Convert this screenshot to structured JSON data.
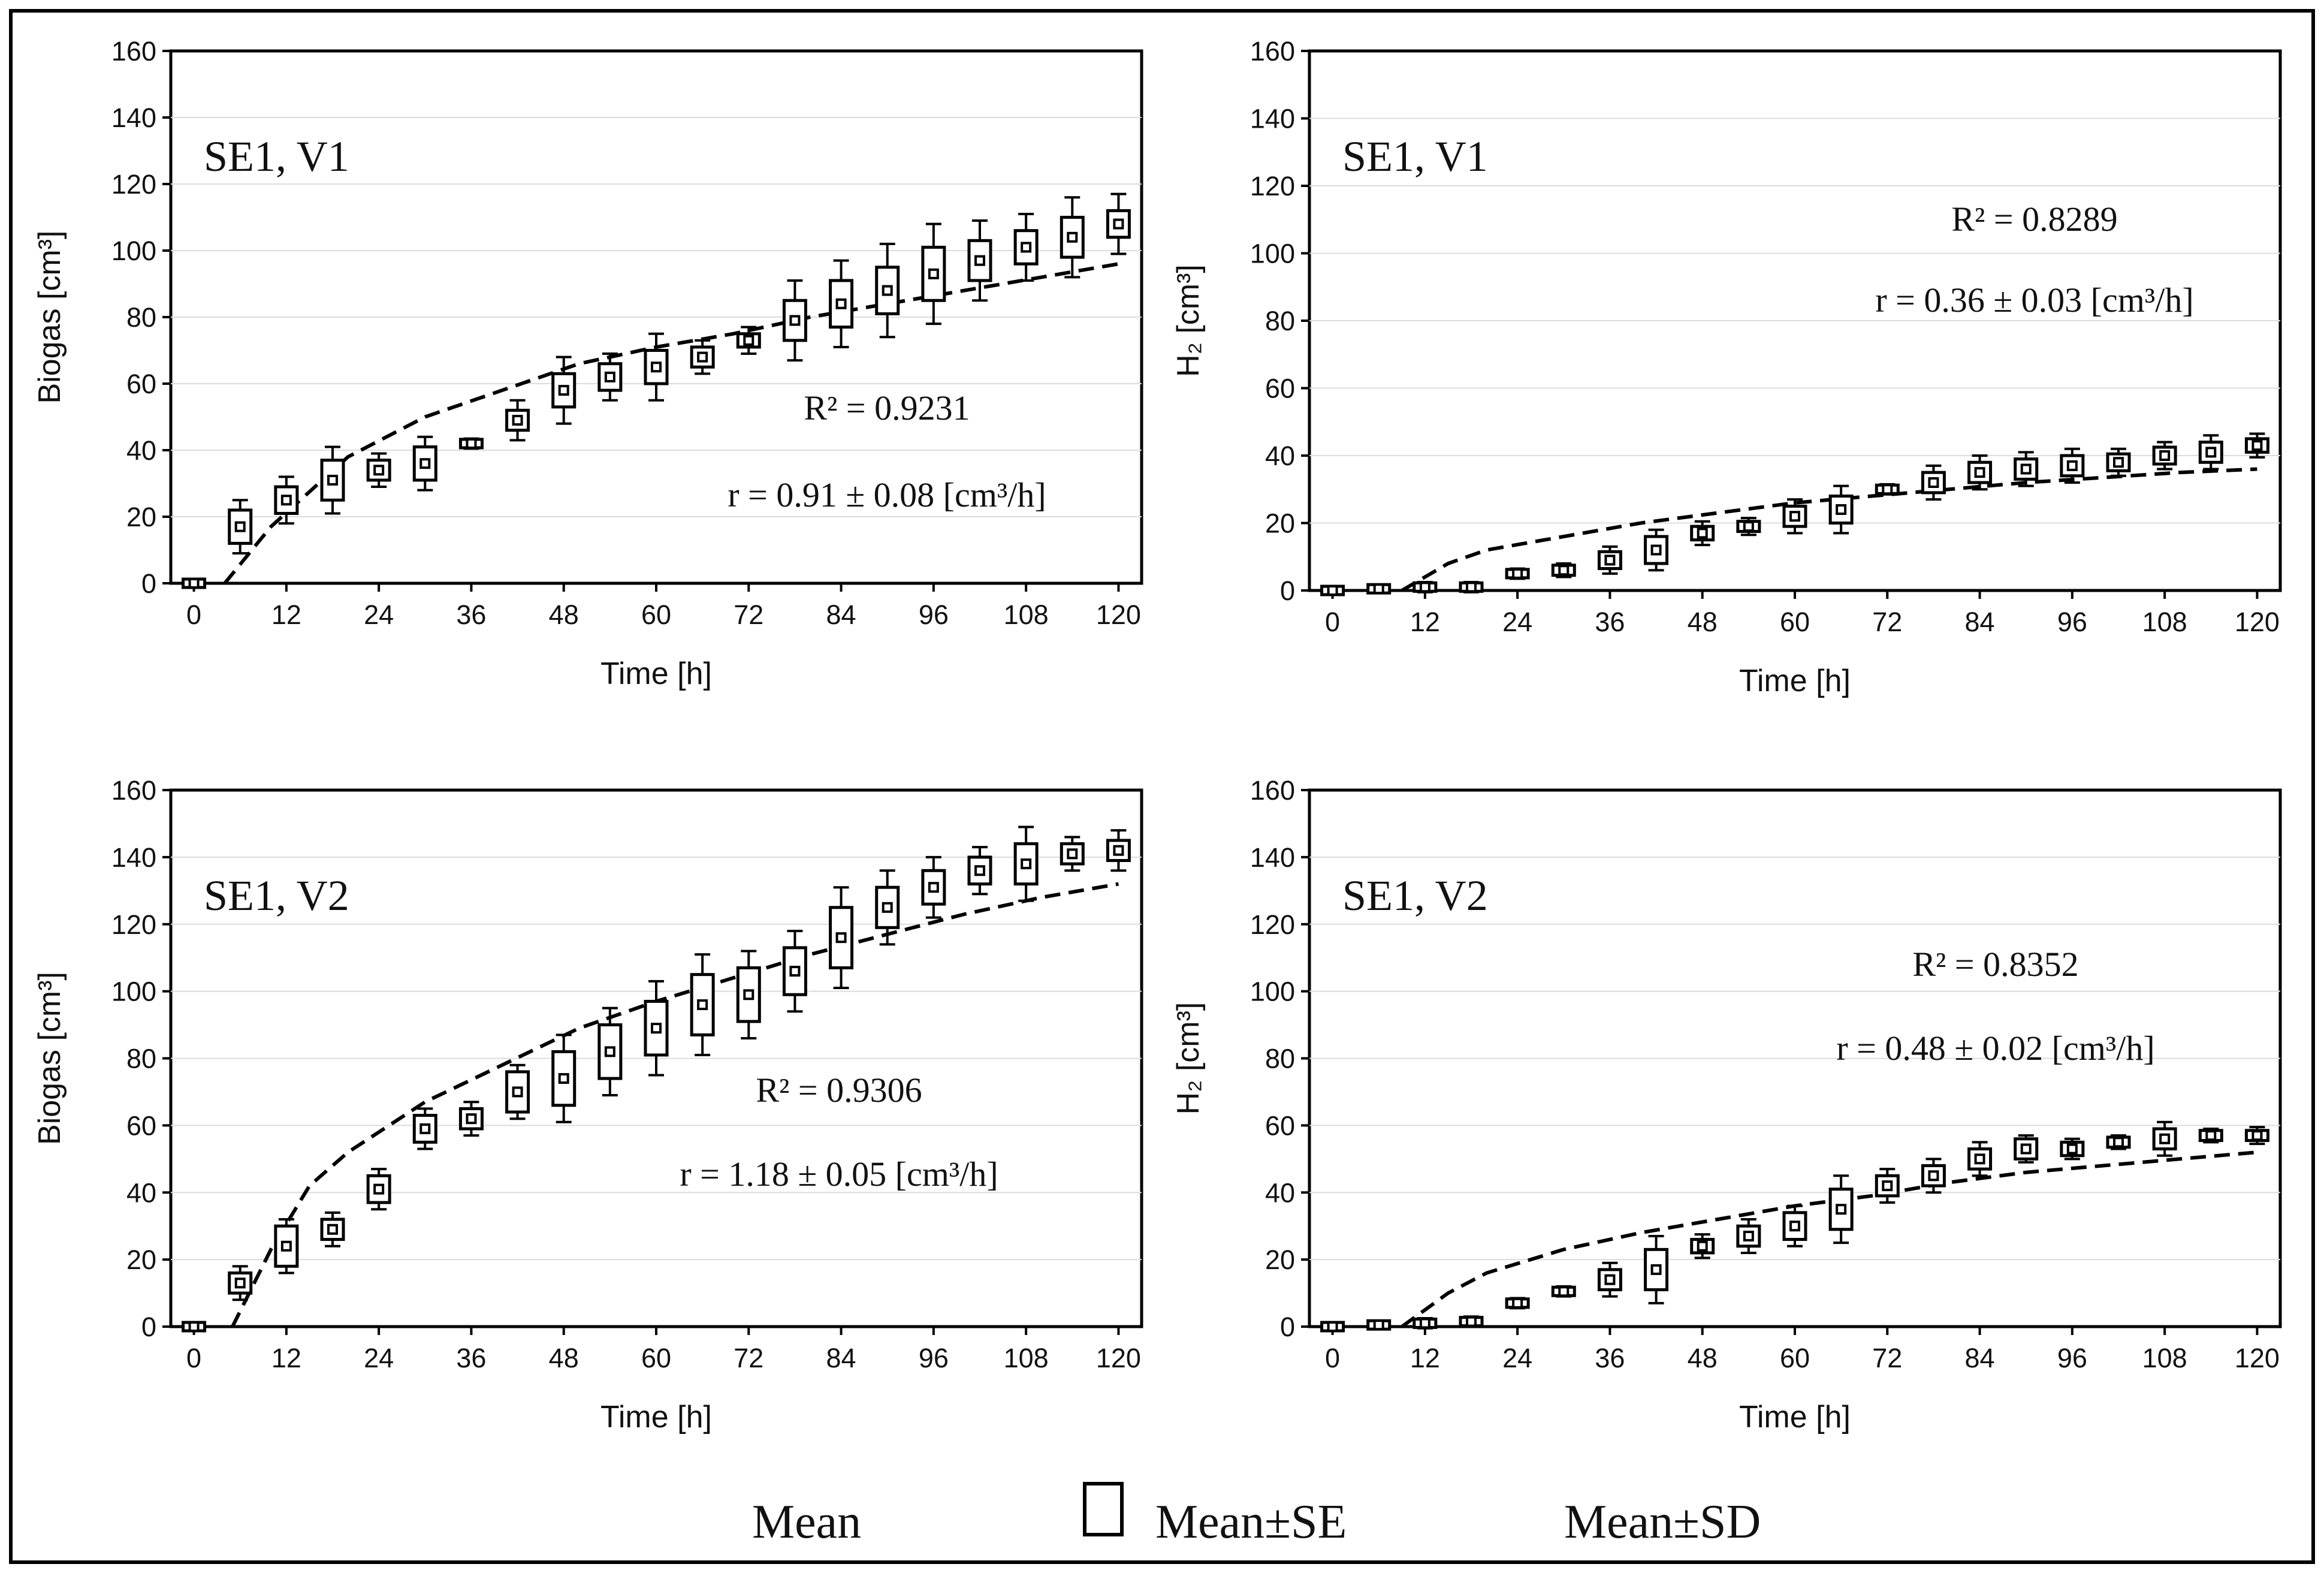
{
  "chart_data": [
    {
      "type": "box",
      "panel_label": "SE1, V1",
      "xlabel": "Time [h]",
      "ylabel": "Biogas [cm³]",
      "xticks": [
        0,
        12,
        24,
        36,
        48,
        60,
        72,
        84,
        96,
        108,
        120
      ],
      "yticks": [
        0,
        20,
        40,
        60,
        80,
        100,
        120,
        140,
        160
      ],
      "xlim": [
        -3,
        123
      ],
      "ylim": [
        0,
        160
      ],
      "grid": true,
      "r2_text": "R² = 0.9231",
      "rate_text": "r = 0.91 ± 0.08 [cm³/h]",
      "x": [
        0,
        6,
        12,
        18,
        24,
        30,
        36,
        42,
        48,
        54,
        60,
        66,
        72,
        78,
        84,
        90,
        96,
        102,
        108,
        114,
        120
      ],
      "series": [
        {
          "name": "Mean",
          "values": [
            0,
            17,
            25,
            31,
            34,
            36,
            42,
            49,
            58,
            62,
            65,
            68,
            73,
            79,
            84,
            88,
            93,
            97,
            101,
            104,
            108
          ]
        },
        {
          "name": "Mean±SE",
          "values": [
            0.5,
            5,
            4,
            6,
            3,
            5,
            1,
            3,
            5,
            4,
            5,
            3,
            2,
            6,
            7,
            7,
            8,
            6,
            5,
            6,
            4
          ]
        },
        {
          "name": "Mean±SD",
          "values": [
            1,
            8,
            7,
            10,
            5,
            8,
            1.5,
            6,
            10,
            7,
            10,
            5,
            4,
            12,
            13,
            14,
            15,
            12,
            10,
            12,
            9
          ]
        }
      ],
      "fit_curve": {
        "name": "fit",
        "x": [
          4,
          10,
          20,
          30,
          40,
          50,
          60,
          70,
          80,
          90,
          100,
          110,
          120
        ],
        "y": [
          0,
          17,
          38,
          50,
          58,
          66,
          71,
          75,
          80,
          84,
          88,
          92,
          96
        ]
      }
    },
    {
      "type": "box",
      "panel_label": "SE1, V1",
      "xlabel": "Time [h]",
      "ylabel": "H₂ [cm³]",
      "xticks": [
        0,
        12,
        24,
        36,
        48,
        60,
        72,
        84,
        96,
        108,
        120
      ],
      "yticks": [
        0,
        20,
        40,
        60,
        80,
        100,
        120,
        140,
        160
      ],
      "xlim": [
        -3,
        123
      ],
      "ylim": [
        0,
        160
      ],
      "grid": true,
      "r2_text": "R² = 0.8289",
      "rate_text": "r = 0.36 ± 0.03 [cm³/h]",
      "x": [
        0,
        6,
        12,
        18,
        24,
        30,
        36,
        42,
        48,
        54,
        60,
        66,
        72,
        78,
        84,
        90,
        96,
        102,
        108,
        114,
        120
      ],
      "series": [
        {
          "name": "Mean",
          "values": [
            0,
            0.5,
            1,
            1,
            5,
            6,
            9,
            12,
            17,
            19,
            22,
            24,
            30,
            32,
            35,
            36,
            37,
            38,
            40,
            41,
            43
          ]
        },
        {
          "name": "Mean±SE",
          "values": [
            0.5,
            0.5,
            1,
            1,
            1,
            1.5,
            2.5,
            4,
            2,
            1.5,
            3,
            4,
            1,
            3,
            3,
            3,
            3,
            2.5,
            2.5,
            3,
            2
          ]
        },
        {
          "name": "Mean±SD",
          "values": [
            0.5,
            1,
            1.5,
            1.5,
            1.5,
            2,
            4,
            6,
            3.5,
            2.5,
            5,
            7,
            1.5,
            5,
            5,
            5,
            5,
            4,
            4,
            5,
            3.5
          ]
        }
      ],
      "fit_curve": {
        "name": "fit",
        "x": [
          9,
          15,
          20,
          30,
          40,
          50,
          60,
          70,
          80,
          90,
          100,
          110,
          120
        ],
        "y": [
          0,
          8,
          12,
          16,
          20,
          23,
          26,
          28,
          30,
          32,
          33.5,
          35,
          36
        ]
      }
    },
    {
      "type": "box",
      "panel_label": "SE1, V2",
      "xlabel": "Time [h]",
      "ylabel": "Biogas [cm³]",
      "xticks": [
        0,
        12,
        24,
        36,
        48,
        60,
        72,
        84,
        96,
        108,
        120
      ],
      "yticks": [
        0,
        20,
        40,
        60,
        80,
        100,
        120,
        140,
        160
      ],
      "xlim": [
        -3,
        123
      ],
      "ylim": [
        0,
        160
      ],
      "grid": true,
      "r2_text": "R² = 0.9306",
      "rate_text": "r = 1.18 ± 0.05 [cm³/h]",
      "x": [
        0,
        6,
        12,
        18,
        24,
        30,
        36,
        42,
        48,
        54,
        60,
        66,
        72,
        78,
        84,
        90,
        96,
        102,
        108,
        114,
        120
      ],
      "series": [
        {
          "name": "Mean",
          "values": [
            0,
            13,
            24,
            29,
            41,
            59,
            62,
            70,
            74,
            82,
            89,
            96,
            99,
            106,
            116,
            125,
            131,
            136,
            138,
            141,
            142
          ]
        },
        {
          "name": "Mean±SE",
          "values": [
            0.5,
            3,
            6,
            3,
            4,
            4,
            3,
            6,
            8,
            8,
            8,
            9,
            8,
            7,
            9,
            6,
            5,
            4,
            6,
            3,
            3
          ]
        },
        {
          "name": "Mean±SD",
          "values": [
            1,
            5,
            8,
            5,
            6,
            6,
            5,
            8,
            13,
            13,
            14,
            15,
            13,
            12,
            15,
            11,
            9,
            7,
            11,
            5,
            6
          ]
        }
      ],
      "fit_curve": {
        "name": "fit",
        "x": [
          5,
          10,
          15,
          20,
          30,
          40,
          50,
          60,
          70,
          80,
          90,
          100,
          110,
          120
        ],
        "y": [
          0,
          23,
          42,
          52,
          67,
          78,
          89,
          97,
          104,
          111,
          117,
          123,
          128,
          132
        ]
      }
    },
    {
      "type": "box",
      "panel_label": "SE1, V2",
      "xlabel": "Time [h]",
      "ylabel": "H₂ [cm³]",
      "xticks": [
        0,
        12,
        24,
        36,
        48,
        60,
        72,
        84,
        96,
        108,
        120
      ],
      "yticks": [
        0,
        20,
        40,
        60,
        80,
        100,
        120,
        140,
        160
      ],
      "xlim": [
        -3,
        123
      ],
      "ylim": [
        0,
        160
      ],
      "grid": true,
      "r2_text": "R² = 0.8352",
      "rate_text": "r = 0.48 ± 0.02 [cm³/h]",
      "x": [
        0,
        6,
        12,
        18,
        24,
        30,
        36,
        42,
        48,
        54,
        60,
        66,
        72,
        78,
        84,
        90,
        96,
        102,
        108,
        114,
        120
      ],
      "series": [
        {
          "name": "Mean",
          "values": [
            0,
            0.5,
            1,
            1.5,
            7,
            10.5,
            14,
            17,
            24,
            27,
            30,
            35,
            42,
            45,
            50,
            53,
            53,
            55,
            56,
            57,
            57
          ]
        },
        {
          "name": "Mean±SE",
          "values": [
            0.5,
            0.5,
            1,
            1,
            1,
            1,
            3,
            6,
            2,
            3,
            4,
            6,
            3,
            3,
            3,
            3,
            2,
            1.5,
            3,
            1.5,
            1.5
          ]
        },
        {
          "name": "Mean±SD",
          "values": [
            0.5,
            1,
            1.5,
            1.5,
            1.5,
            1.5,
            5,
            10,
            3.5,
            5,
            6,
            10,
            5,
            5,
            5,
            4,
            3,
            2,
            5,
            2,
            2.5
          ]
        }
      ],
      "fit_curve": {
        "name": "fit",
        "x": [
          9,
          15,
          20,
          30,
          40,
          50,
          60,
          70,
          80,
          90,
          100,
          110,
          120
        ],
        "y": [
          0,
          10,
          16,
          23,
          28,
          32,
          36,
          39,
          43,
          46,
          48,
          50,
          52
        ]
      }
    }
  ],
  "legend": {
    "mean": "Mean",
    "se": "Mean±SE",
    "sd": "Mean±SD"
  }
}
